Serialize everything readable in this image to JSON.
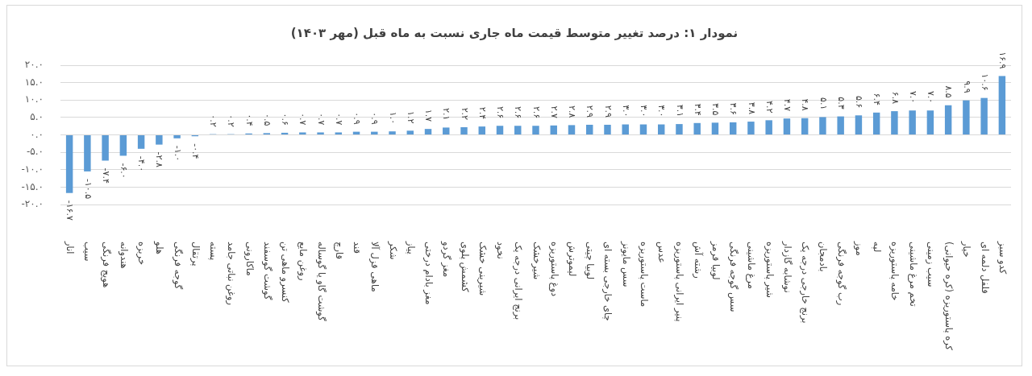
{
  "chart_data": {
    "type": "bar",
    "title": "نمودار ۱: درصد تغییر متوسط قیمت ماه جاری نسبت به ماه قبل (مهر ۱۴۰۳)",
    "categories": [
      "انار",
      "سیب",
      "هویج فرنگی",
      "هندوانه",
      "خربزه",
      "هلو",
      "گوجه فرنگی",
      "پرتقال",
      "پسته",
      "روغن نباتی جامد",
      "ماکارونی",
      "گوشت گوسفند",
      "کنسرو ماهی تن",
      "روغن مایع",
      "گوشت گاو یا گوساله",
      "قارچ",
      "قند",
      "ماهی قزل آلا",
      "شکر",
      "پیاز",
      "مغز بادام درختی",
      "مغز گردو",
      "کشمش پلوی",
      "شیرینی خشک",
      "نخود",
      "برنج ایرانی درجه یک",
      "شیرخشک",
      "دوغ پاستوریزه",
      "لیموترش",
      "لوبیا چیتی",
      "چای خارجی بسته ای",
      "سس مایونز",
      "ماست پاستوریزه",
      "عدس",
      "پنیر ایرانی پاستوریزه",
      "رشته آش",
      "لوبیا قرمز",
      "سس گوجه فرنگی",
      "مرغ ماشینی",
      "شیر پاستوریزه",
      "نوشابه گازدار",
      "برنج خارجی درجه یک",
      "بادمجان",
      "رب گوجه فرنگی",
      "موز",
      "لپه",
      "خامه پاستوریزه",
      "تخم مرغ ماشینی",
      "سیب زمینی",
      "کره پاستوریزه (کره حیوانی)",
      "خیار",
      "فلفل دلمه ای",
      "کدو سبز"
    ],
    "values": [
      -16.7,
      -10.5,
      -7.4,
      -6.0,
      -4.0,
      -2.8,
      -1.0,
      -0.4,
      0.2,
      0.2,
      0.4,
      0.5,
      0.6,
      0.7,
      0.7,
      0.7,
      0.9,
      0.9,
      1.0,
      1.2,
      1.7,
      2.1,
      2.2,
      2.4,
      2.6,
      2.6,
      2.6,
      2.7,
      2.8,
      2.9,
      2.9,
      3.0,
      3.0,
      3.0,
      3.1,
      3.4,
      3.5,
      3.6,
      3.8,
      4.2,
      4.7,
      4.8,
      5.1,
      5.3,
      5.6,
      6.4,
      6.8,
      7.0,
      7.0,
      8.5,
      9.9,
      10.6,
      16.9
    ],
    "value_labels": [
      "-۱۶.۷",
      "-۱۰.۵",
      "-۷.۴",
      "-۶.۰",
      "-۴.۰",
      "-۲.۸",
      "-۱.۰",
      "-۰.۴",
      "۰.۲",
      "۰.۲",
      "۰.۴",
      "۰.۵",
      "۰.۶",
      "۰.۷",
      "۰.۷",
      "۰.۷",
      "۰.۹",
      "۰.۹",
      "۱.۰",
      "۱.۲",
      "۱.۷",
      "۲.۱",
      "۲.۲",
      "۲.۴",
      "۲.۶",
      "۲.۶",
      "۲.۶",
      "۲.۷",
      "۲.۸",
      "۲.۹",
      "۲.۹",
      "۳.۰",
      "۳.۰",
      "۳.۰",
      "۳.۱",
      "۳.۴",
      "۳.۵",
      "۳.۶",
      "۳.۸",
      "۴.۲",
      "۴.۷",
      "۴.۸",
      "۵.۱",
      "۵.۳",
      "۵.۶",
      "۶.۴",
      "۶.۸",
      "۷.۰",
      "۷.۰",
      "۸.۵",
      "۹.۹",
      "۱۰.۶",
      "۱۶.۹"
    ],
    "color": "#5b9bd5",
    "ylim": [
      -20,
      20
    ],
    "yticks": [
      {
        "value": -20,
        "label": "-۲۰.۰"
      },
      {
        "value": -15,
        "label": "-۱۵.۰"
      },
      {
        "value": -10,
        "label": "-۱۰.۰"
      },
      {
        "value": -5,
        "label": "-۵.۰"
      },
      {
        "value": 0,
        "label": "۰.۰"
      },
      {
        "value": 5,
        "label": "۵.۰"
      },
      {
        "value": 10,
        "label": "۱۰.۰"
      },
      {
        "value": 15,
        "label": "۱۵.۰"
      },
      {
        "value": 20,
        "label": "۲۰.۰"
      }
    ],
    "grid": "y"
  }
}
